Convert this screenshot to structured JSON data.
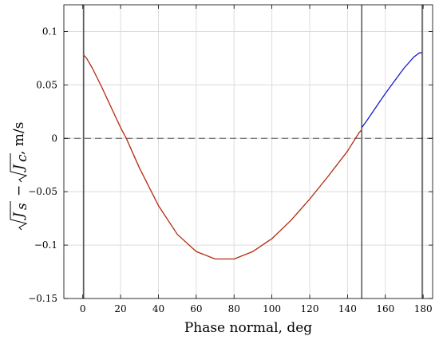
{
  "chart_data": {
    "type": "line",
    "xlabel": "Phase normal, deg",
    "ylabel": {
      "radicand_1": "J",
      "sub_1": "s",
      "minus": "−",
      "radicand_2": "J",
      "sub_2": "c",
      "unit": ", m/s"
    },
    "xlim": [
      -10,
      185
    ],
    "ylim": [
      -0.15,
      0.125
    ],
    "xticks": [
      0,
      20,
      40,
      60,
      80,
      100,
      120,
      140,
      160,
      180
    ],
    "xtick_labels": [
      "0",
      "20",
      "40",
      "60",
      "80",
      "100",
      "120",
      "140",
      "160",
      "180"
    ],
    "yticks": [
      -0.15,
      -0.1,
      -0.05,
      0,
      0.05,
      0.1
    ],
    "ytick_labels": [
      "−0.15",
      "−0.1",
      "−0.05",
      "0",
      "0.05",
      "0.1"
    ],
    "grid": true,
    "hline": {
      "y": 0,
      "style": "dashed",
      "color": "#555555"
    },
    "vlines": [
      {
        "x": 0.5,
        "color": "#000000"
      },
      {
        "x": 147.5,
        "color": "#000000"
      },
      {
        "x": 179.5,
        "color": "#000000"
      }
    ],
    "series": [
      {
        "color": "#b22a0e",
        "x": [
          0.5,
          2,
          5,
          10,
          15,
          20,
          23,
          30,
          40,
          50,
          60,
          70,
          80,
          90,
          100,
          110,
          120,
          130,
          140,
          146,
          147.5
        ],
        "y": [
          0.078,
          0.075,
          0.066,
          0.048,
          0.029,
          0.01,
          0.0,
          -0.028,
          -0.063,
          -0.09,
          -0.106,
          -0.113,
          -0.113,
          -0.106,
          -0.094,
          -0.077,
          -0.057,
          -0.035,
          -0.012,
          0.005,
          0.008
        ]
      },
      {
        "color": "#1a1acc",
        "x": [
          147.5,
          150,
          155,
          160,
          165,
          170,
          175,
          178,
          179.5
        ],
        "y": [
          0.01,
          0.016,
          0.029,
          0.042,
          0.054,
          0.066,
          0.076,
          0.08,
          0.08
        ]
      }
    ]
  }
}
